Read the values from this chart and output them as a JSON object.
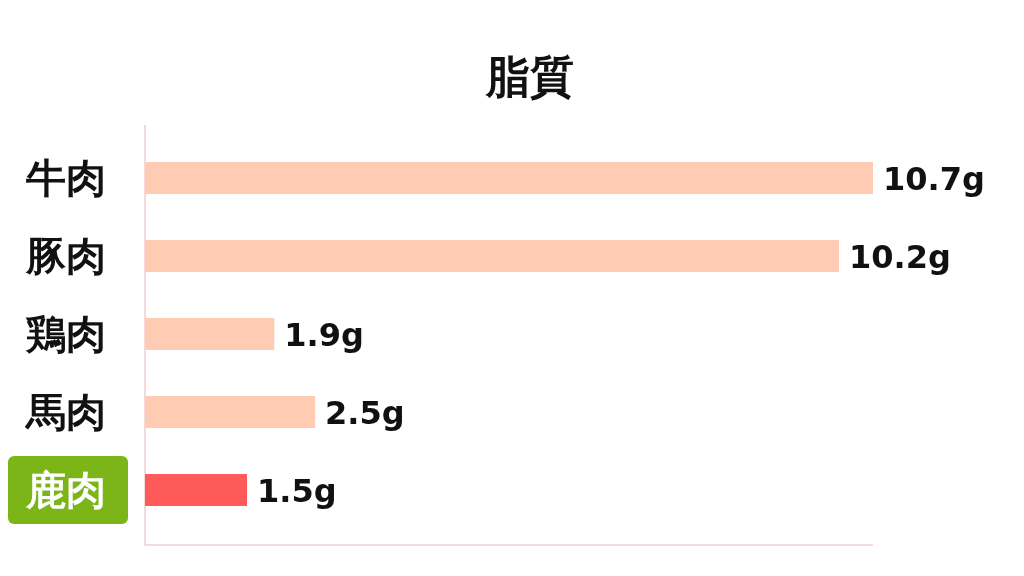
{
  "chart_data": {
    "type": "bar",
    "orientation": "horizontal",
    "title": "脂質",
    "categories": [
      "牛肉",
      "豚肉",
      "鶏肉",
      "馬肉",
      "鹿肉"
    ],
    "values": [
      10.7,
      10.2,
      1.9,
      2.5,
      1.5
    ],
    "value_labels": [
      "10.7g",
      "10.2g",
      "1.9g",
      "2.5g",
      "1.5g"
    ],
    "colors": [
      "#ffcbb3",
      "#ffcbb3",
      "#ffcbb3",
      "#ffcbb3",
      "#ff5a5a"
    ]
  }
}
